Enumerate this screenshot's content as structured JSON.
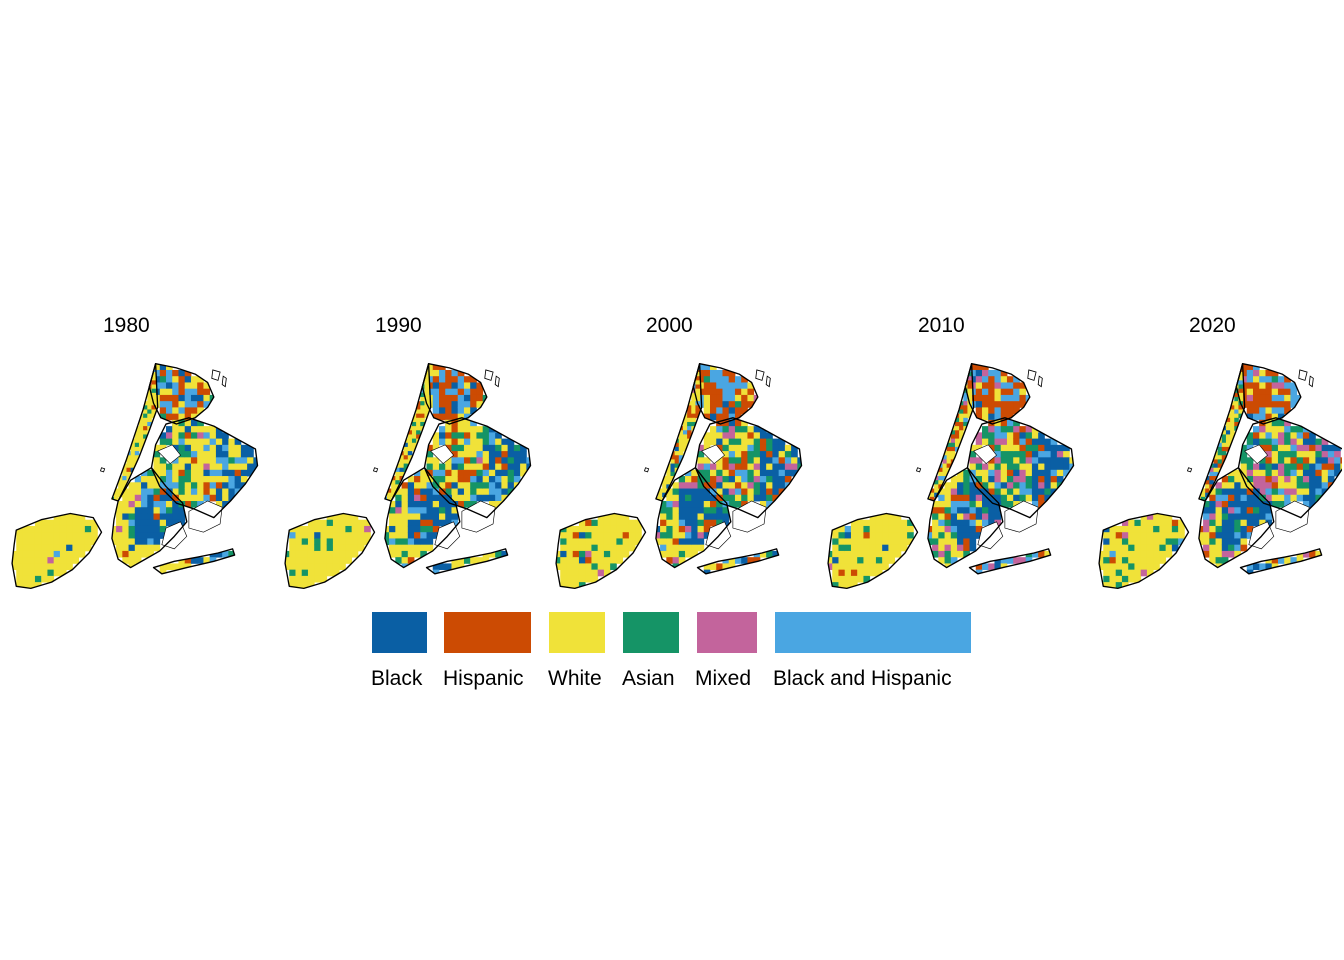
{
  "panels": [
    {
      "year": "1980",
      "mix": {
        "white": 0.52,
        "black": 0.16,
        "hispanic": 0.1,
        "asian": 0.09,
        "mixed": 0.01,
        "black_hispanic": 0.12
      }
    },
    {
      "year": "1990",
      "mix": {
        "white": 0.42,
        "black": 0.17,
        "hispanic": 0.15,
        "asian": 0.12,
        "mixed": 0.02,
        "black_hispanic": 0.12
      }
    },
    {
      "year": "2000",
      "mix": {
        "white": 0.3,
        "black": 0.18,
        "hispanic": 0.17,
        "asian": 0.16,
        "mixed": 0.07,
        "black_hispanic": 0.12
      }
    },
    {
      "year": "2010",
      "mix": {
        "white": 0.26,
        "black": 0.17,
        "hispanic": 0.16,
        "asian": 0.17,
        "mixed": 0.12,
        "black_hispanic": 0.12
      }
    },
    {
      "year": "2020",
      "mix": {
        "white": 0.22,
        "black": 0.15,
        "hispanic": 0.15,
        "asian": 0.19,
        "mixed": 0.17,
        "black_hispanic": 0.12
      }
    }
  ],
  "legend": [
    {
      "key": "black",
      "label": "Black",
      "color": "#0a5fa4"
    },
    {
      "key": "hispanic",
      "label": "Hispanic",
      "color": "#cc4b03"
    },
    {
      "key": "white",
      "label": "White",
      "color": "#f0e239"
    },
    {
      "key": "asian",
      "label": "Asian",
      "color": "#159466"
    },
    {
      "key": "mixed",
      "label": "Mixed",
      "color": "#c3649c"
    },
    {
      "key": "black_hispanic",
      "label": "Black and Hispanic",
      "color": "#4aa6e2"
    }
  ]
}
